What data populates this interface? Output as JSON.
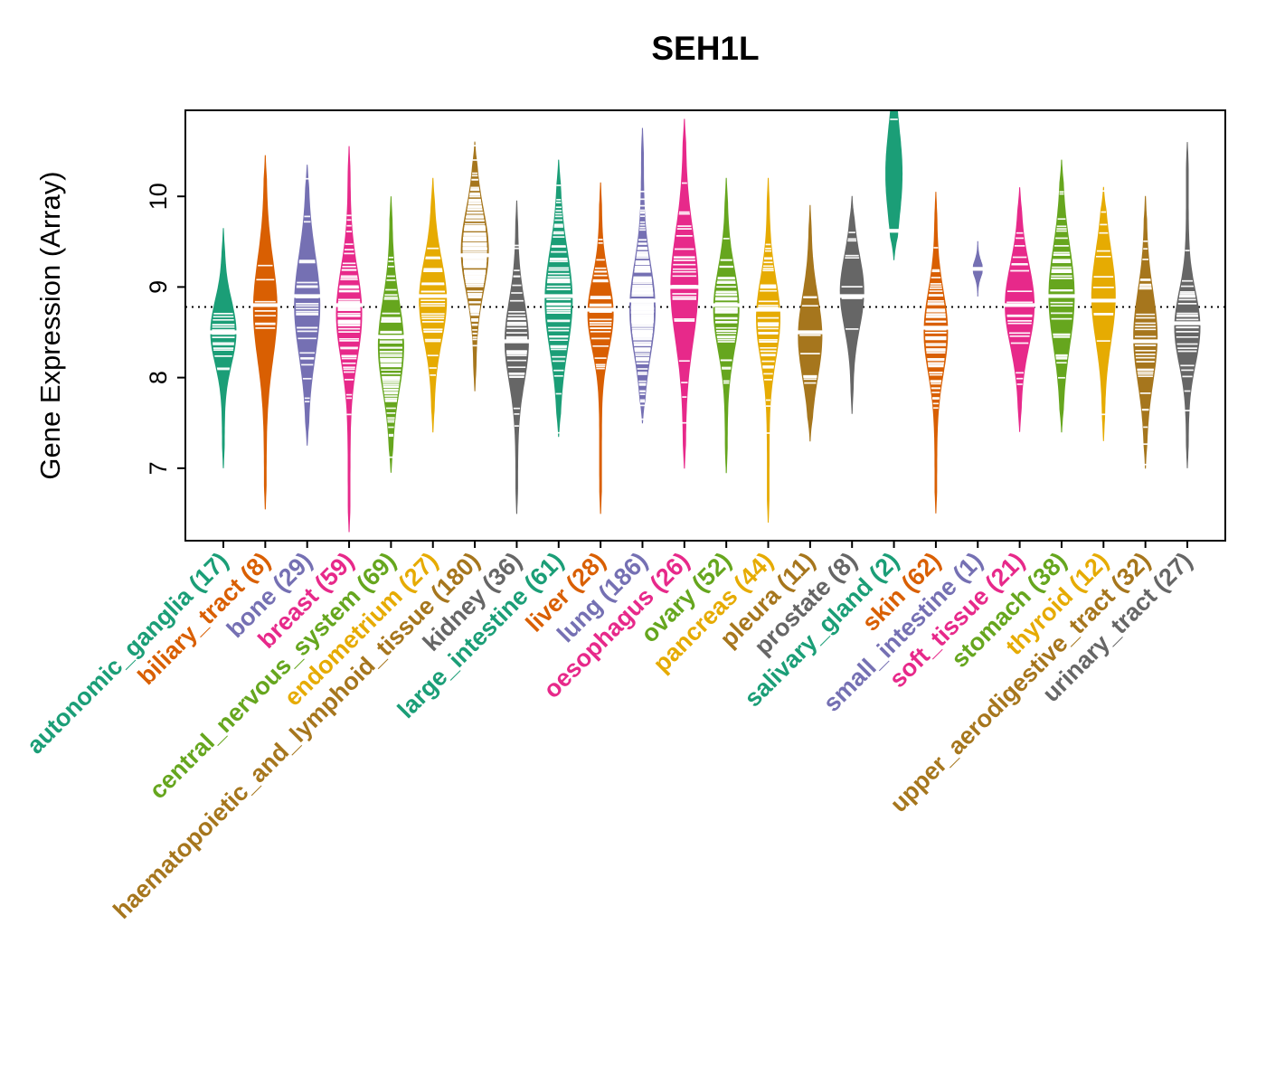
{
  "page": {
    "background": "#ffffff"
  },
  "chart_data": {
    "type": "violin",
    "title": "SEH1L",
    "ylabel": "Gene Expression (Array)",
    "xlabel": "",
    "yticks": [
      7,
      8,
      9,
      10
    ],
    "ylim": [
      6.2,
      10.95
    ],
    "overall_line": 8.78,
    "grid": false,
    "legend": false,
    "palette": [
      "#1B9E77",
      "#D95F02",
      "#7570B3",
      "#E7298A",
      "#66A61E",
      "#E6AB02",
      "#A6761D",
      "#666666"
    ],
    "categories": [
      {
        "name": "autonomic_ganglia",
        "label": "autonomic_ganglia (17)",
        "n": 17,
        "color": "#1B9E77",
        "median": 8.5,
        "center": 8.5,
        "sd": 0.35,
        "min": 7.0,
        "max": 9.65,
        "halfwidth": 14
      },
      {
        "name": "biliary_tract",
        "label": "biliary_tract (8)",
        "n": 8,
        "color": "#D95F02",
        "median": 8.8,
        "center": 8.75,
        "sd": 0.55,
        "min": 6.55,
        "max": 10.45,
        "halfwidth": 13
      },
      {
        "name": "bone",
        "label": "bone (29)",
        "n": 29,
        "color": "#7570B3",
        "median": 8.9,
        "center": 8.8,
        "sd": 0.55,
        "min": 7.25,
        "max": 10.35,
        "halfwidth": 14
      },
      {
        "name": "breast",
        "label": "breast (59)",
        "n": 59,
        "color": "#E7298A",
        "median": 8.8,
        "center": 8.7,
        "sd": 0.5,
        "min": 6.3,
        "max": 10.55,
        "halfwidth": 14
      },
      {
        "name": "central_nervous_system",
        "label": "central_nervous_system (69)",
        "n": 69,
        "color": "#66A61E",
        "median": 8.45,
        "center": 8.35,
        "sd": 0.5,
        "min": 6.95,
        "max": 10.0,
        "halfwidth": 14
      },
      {
        "name": "endometrium",
        "label": "endometrium (27)",
        "n": 27,
        "color": "#E6AB02",
        "median": 8.9,
        "center": 8.85,
        "sd": 0.45,
        "min": 7.4,
        "max": 10.2,
        "halfwidth": 15
      },
      {
        "name": "haematopoietic_and_lymphoid_tissue",
        "label": "haematopoietic_and_lymphoid_tissue (180)",
        "n": 180,
        "color": "#A6761D",
        "median": 9.35,
        "center": 9.4,
        "sd": 0.45,
        "min": 7.85,
        "max": 10.6,
        "halfwidth": 15
      },
      {
        "name": "kidney",
        "label": "kidney (36)",
        "n": 36,
        "color": "#666666",
        "median": 8.4,
        "center": 8.4,
        "sd": 0.45,
        "min": 6.5,
        "max": 9.95,
        "halfwidth": 13
      },
      {
        "name": "large_intestine",
        "label": "large_intestine (61)",
        "n": 61,
        "color": "#1B9E77",
        "median": 8.9,
        "center": 8.85,
        "sd": 0.55,
        "min": 7.35,
        "max": 10.4,
        "halfwidth": 15
      },
      {
        "name": "liver",
        "label": "liver (28)",
        "n": 28,
        "color": "#D95F02",
        "median": 8.75,
        "center": 8.7,
        "sd": 0.4,
        "min": 6.5,
        "max": 10.15,
        "halfwidth": 14
      },
      {
        "name": "lung",
        "label": "lung (186)",
        "n": 186,
        "color": "#7570B3",
        "median": 8.85,
        "center": 8.75,
        "sd": 0.5,
        "min": 7.5,
        "max": 10.75,
        "halfwidth": 14
      },
      {
        "name": "oesophagus",
        "label": "oesophagus (26)",
        "n": 26,
        "color": "#E7298A",
        "median": 9.0,
        "center": 9.0,
        "sd": 0.6,
        "min": 7.0,
        "max": 10.85,
        "halfwidth": 15
      },
      {
        "name": "ovary",
        "label": "ovary (52)",
        "n": 52,
        "color": "#66A61E",
        "median": 8.8,
        "center": 8.75,
        "sd": 0.45,
        "min": 6.95,
        "max": 10.2,
        "halfwidth": 14
      },
      {
        "name": "pancreas",
        "label": "pancreas (44)",
        "n": 44,
        "color": "#E6AB02",
        "median": 8.75,
        "center": 8.65,
        "sd": 0.45,
        "min": 6.4,
        "max": 10.2,
        "halfwidth": 13
      },
      {
        "name": "pleura",
        "label": "pleura (11)",
        "n": 11,
        "color": "#A6761D",
        "median": 8.5,
        "center": 8.45,
        "sd": 0.45,
        "min": 7.3,
        "max": 9.9,
        "halfwidth": 13
      },
      {
        "name": "prostate",
        "label": "prostate (8)",
        "n": 8,
        "color": "#666666",
        "median": 8.9,
        "center": 8.95,
        "sd": 0.4,
        "min": 7.6,
        "max": 10.0,
        "halfwidth": 13
      },
      {
        "name": "salivary_gland",
        "label": "salivary_gland (2)",
        "n": 2,
        "color": "#1B9E77",
        "median": 9.62,
        "center": 10.25,
        "sd": 0.5,
        "min": 9.3,
        "max": 11.2,
        "halfwidth": 9,
        "points": [
          9.62,
          10.85
        ]
      },
      {
        "name": "skin",
        "label": "skin (62)",
        "n": 62,
        "color": "#D95F02",
        "median": 8.55,
        "center": 8.5,
        "sd": 0.45,
        "min": 6.5,
        "max": 10.05,
        "halfwidth": 13
      },
      {
        "name": "small_intestine",
        "label": "small_intestine (1)",
        "n": 1,
        "color": "#7570B3",
        "median": 9.2,
        "center": 9.2,
        "sd": 0.12,
        "min": 8.9,
        "max": 9.5,
        "halfwidth": 5,
        "points": [
          9.2
        ]
      },
      {
        "name": "soft_tissue",
        "label": "soft_tissue (21)",
        "n": 21,
        "color": "#E7298A",
        "median": 8.8,
        "center": 8.8,
        "sd": 0.45,
        "min": 7.4,
        "max": 10.1,
        "halfwidth": 16
      },
      {
        "name": "stomach",
        "label": "stomach (38)",
        "n": 38,
        "color": "#66A61E",
        "median": 8.9,
        "center": 8.9,
        "sd": 0.55,
        "min": 7.4,
        "max": 10.4,
        "halfwidth": 14
      },
      {
        "name": "thyroid",
        "label": "thyroid (12)",
        "n": 12,
        "color": "#E6AB02",
        "median": 8.85,
        "center": 8.9,
        "sd": 0.5,
        "min": 7.3,
        "max": 10.1,
        "halfwidth": 13
      },
      {
        "name": "upper_aerodigestive_tract",
        "label": "upper_aerodigestive_tract (32)",
        "n": 32,
        "color": "#A6761D",
        "median": 8.4,
        "center": 8.45,
        "sd": 0.5,
        "min": 7.0,
        "max": 10.0,
        "halfwidth": 13
      },
      {
        "name": "urinary_tract",
        "label": "urinary_tract (27)",
        "n": 27,
        "color": "#666666",
        "median": 8.6,
        "center": 8.55,
        "sd": 0.4,
        "min": 7.0,
        "max": 10.6,
        "halfwidth": 14
      }
    ]
  }
}
